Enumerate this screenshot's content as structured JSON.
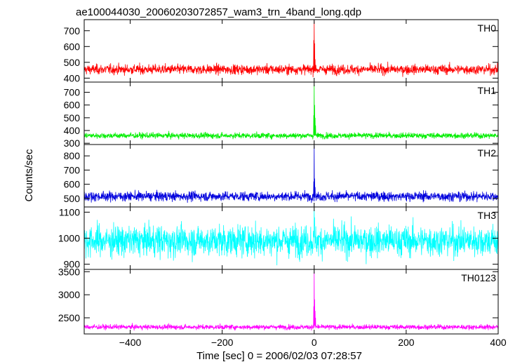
{
  "chart_data": {
    "type": "line",
    "title": "ae100044030_20060203072857_wam3_trn_4band_long.qdp",
    "xlabel": "Time [sec] 0 = 2006/02/03 07:28:57",
    "ylabel": "Counts/sec",
    "xlim": [
      -500,
      400
    ],
    "x_ticks": [
      -400,
      -200,
      0,
      200,
      400
    ],
    "panels": [
      {
        "name": "TH0",
        "color": "#ff0000",
        "ylim": [
          375,
          770
        ],
        "y_ticks": [
          400,
          500,
          600,
          700
        ],
        "baseline": 455,
        "noise_sigma": 22,
        "peak": [
          {
            "x": -1,
            "y": 640
          },
          {
            "x": 0,
            "y": 760
          },
          {
            "x": 1,
            "y": 620
          },
          {
            "x": 2,
            "y": 520
          }
        ]
      },
      {
        "name": "TH1",
        "color": "#00ee00",
        "ylim": [
          290,
          780
        ],
        "y_ticks": [
          300,
          400,
          500,
          600,
          700
        ],
        "baseline": 360,
        "noise_sigma": 16,
        "peak": [
          {
            "x": -1,
            "y": 520
          },
          {
            "x": 0,
            "y": 760
          },
          {
            "x": 1,
            "y": 600
          },
          {
            "x": 2,
            "y": 500
          },
          {
            "x": 3,
            "y": 440
          }
        ]
      },
      {
        "name": "TH2",
        "color": "#0000dd",
        "ylim": [
          440,
          880
        ],
        "y_ticks": [
          500,
          600,
          700,
          800
        ],
        "baseline": 515,
        "noise_sigma": 24,
        "peak": [
          {
            "x": -1,
            "y": 620
          },
          {
            "x": 0,
            "y": 870
          },
          {
            "x": 1,
            "y": 640
          },
          {
            "x": 2,
            "y": 580
          }
        ]
      },
      {
        "name": "TH3",
        "color": "#00ffff",
        "ylim": [
          880,
          1120
        ],
        "y_ticks": [
          900,
          1000,
          1100
        ],
        "baseline": 990,
        "noise_sigma": 42,
        "peak": [
          {
            "x": 0,
            "y": 1110
          },
          {
            "x": 1,
            "y": 1080
          }
        ]
      },
      {
        "name": "TH0123",
        "color": "#ff00ff",
        "ylim": [
          2150,
          3550
        ],
        "y_ticks": [
          2500,
          3000,
          3500
        ],
        "baseline": 2300,
        "noise_sigma": 38,
        "peak": [
          {
            "x": -1,
            "y": 2750
          },
          {
            "x": 0,
            "y": 3500
          },
          {
            "x": 1,
            "y": 2900
          },
          {
            "x": 2,
            "y": 2650
          },
          {
            "x": 3,
            "y": 2500
          }
        ]
      }
    ]
  }
}
